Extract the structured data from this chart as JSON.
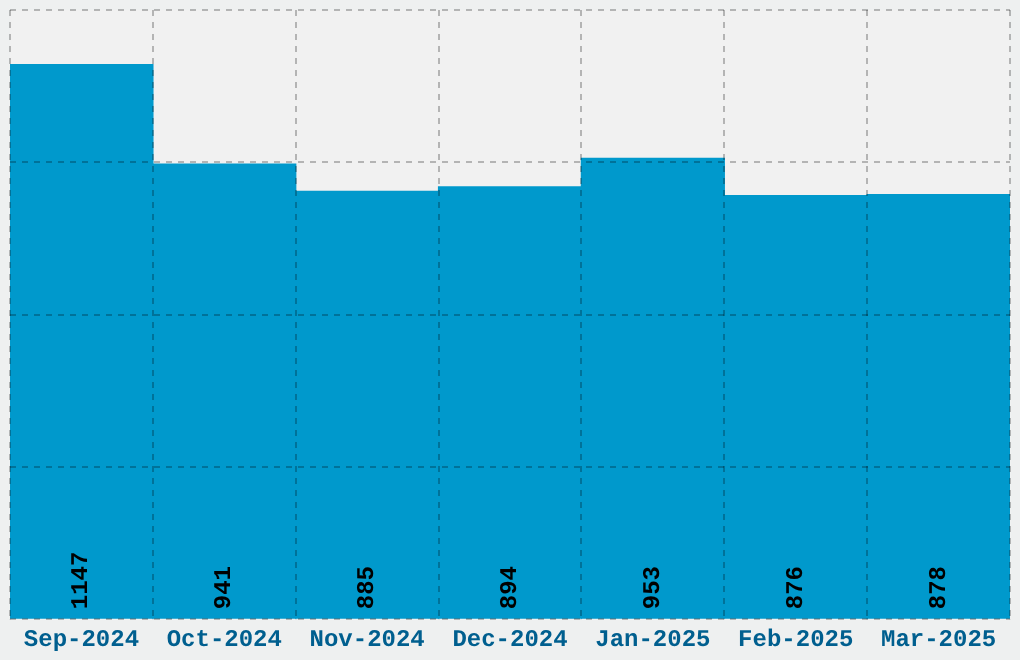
{
  "chart_data": {
    "type": "bar",
    "categories": [
      "Sep-2024",
      "Oct-2024",
      "Nov-2024",
      "Dec-2024",
      "Jan-2025",
      "Feb-2025",
      "Mar-2025"
    ],
    "values": [
      1147,
      941,
      885,
      894,
      953,
      876,
      878
    ],
    "color": "#0099cc",
    "ylim": [
      0,
      1260
    ],
    "yticks": [
      {
        "value": 0,
        "label": null
      },
      {
        "value": 315,
        "label": null
      },
      {
        "value": 630,
        "label": null
      },
      {
        "value": 945,
        "label": null
      },
      {
        "value": 1260,
        "label": null
      }
    ],
    "tick_labels": "x",
    "grid": true,
    "data_labels": true
  }
}
